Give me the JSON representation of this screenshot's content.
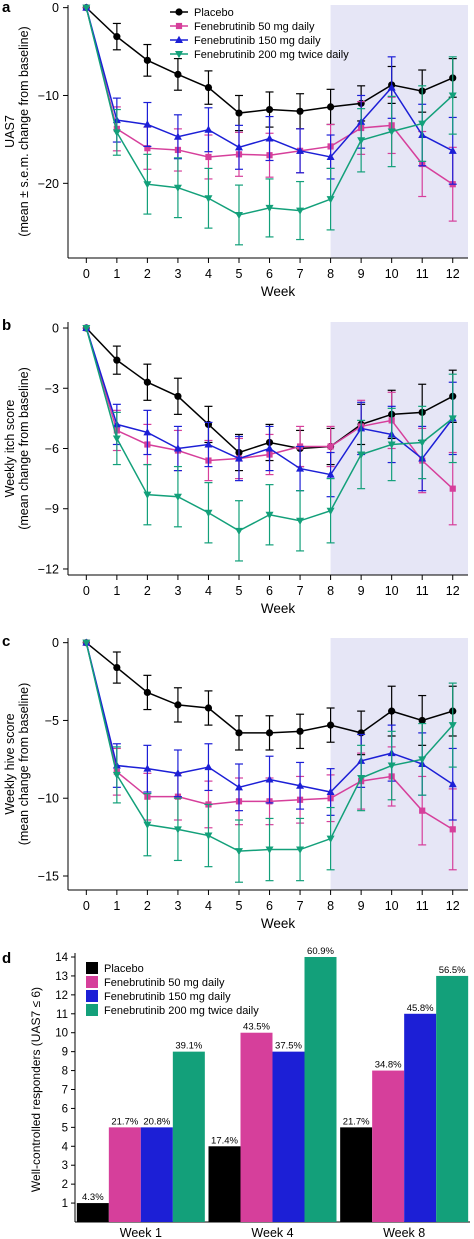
{
  "colors": {
    "placebo": "#000000",
    "fen50": "#d63f9b",
    "fen150": "#1c1fd6",
    "fen200": "#13a07a",
    "shade": "#e6e6f6"
  },
  "chart_data": [
    {
      "panel_label": "a",
      "type": "line",
      "title": "",
      "xlabel": "Week",
      "ylabel_lines": [
        "UAS7",
        "(mean ± s.e.m. change from baseline)"
      ],
      "x": [
        0,
        1,
        2,
        3,
        4,
        5,
        6,
        7,
        8,
        9,
        10,
        11,
        12
      ],
      "xlim": [
        -0.6,
        12.5
      ],
      "ylim": [
        -28.5,
        0.3
      ],
      "yticks": [
        0,
        -10,
        -20
      ],
      "ytick_labels": [
        "0",
        "−10",
        "−20"
      ],
      "shaded_from_week": 8,
      "legend_position": "top",
      "series": [
        {
          "name": "Placebo",
          "key": "placebo",
          "marker": "circle",
          "values": [
            0,
            -3.3,
            -6.0,
            -7.6,
            -9.1,
            -12.0,
            -11.6,
            -11.8,
            -11.3,
            -10.9,
            -8.8,
            -9.5,
            -8.0
          ],
          "errors": [
            0,
            1.5,
            1.8,
            1.8,
            1.9,
            2.0,
            2.0,
            2.0,
            2.0,
            2.0,
            2.1,
            2.4,
            2.2
          ]
        },
        {
          "name": "Fenebrutinib 50 mg daily",
          "key": "fen50",
          "marker": "square",
          "values": [
            0,
            -13.8,
            -16.0,
            -16.2,
            -17.0,
            -16.7,
            -16.8,
            -16.3,
            -15.8,
            -13.7,
            -13.4,
            -17.8,
            -20.1
          ],
          "errors": [
            0,
            2.5,
            2.4,
            2.4,
            2.5,
            2.5,
            2.5,
            2.5,
            2.5,
            3.0,
            3.2,
            3.7,
            4.2
          ]
        },
        {
          "name": "Fenebrutinib 150 mg daily",
          "key": "fen150",
          "marker": "triangle-up",
          "values": [
            0,
            -12.8,
            -13.3,
            -14.7,
            -13.9,
            -15.9,
            -14.9,
            -16.3,
            -17.0,
            -13.0,
            -9.1,
            -14.5,
            -16.3
          ],
          "errors": [
            0,
            2.5,
            2.5,
            2.5,
            2.5,
            2.5,
            2.5,
            2.5,
            2.5,
            3.0,
            3.5,
            3.5,
            3.8
          ]
        },
        {
          "name": "Fenebrutinib 200 mg twice daily",
          "key": "fen200",
          "marker": "triangle-down",
          "values": [
            0,
            -14.2,
            -20.1,
            -20.5,
            -21.7,
            -23.6,
            -22.8,
            -23.1,
            -21.8,
            -15.1,
            -14.1,
            -13.2,
            -10.0
          ],
          "errors": [
            0,
            2.6,
            3.4,
            3.4,
            3.4,
            3.4,
            3.3,
            3.3,
            3.5,
            3.6,
            4.0,
            4.3,
            4.4
          ]
        }
      ]
    },
    {
      "panel_label": "b",
      "type": "line",
      "title": "",
      "xlabel": "Week",
      "ylabel_lines": [
        "Weekly itch score",
        "(mean change from baseline)"
      ],
      "x": [
        0,
        1,
        2,
        3,
        4,
        5,
        6,
        7,
        8,
        9,
        10,
        11,
        12
      ],
      "xlim": [
        -0.6,
        12.5
      ],
      "ylim": [
        -12.3,
        0.3
      ],
      "yticks": [
        0,
        -3,
        -6,
        -9,
        -12
      ],
      "ytick_labels": [
        "0",
        "−3",
        "−6",
        "−9",
        "−12"
      ],
      "shaded_from_week": 8,
      "series": [
        {
          "name": "Placebo",
          "key": "placebo",
          "marker": "circle",
          "values": [
            0,
            -1.6,
            -2.7,
            -3.4,
            -4.8,
            -6.2,
            -5.7,
            -6.0,
            -5.9,
            -4.8,
            -4.3,
            -4.2,
            -3.4
          ],
          "errors": [
            0,
            0.7,
            0.9,
            0.9,
            0.9,
            0.9,
            0.9,
            0.9,
            0.9,
            1.0,
            1.2,
            1.4,
            1.3
          ]
        },
        {
          "name": "Fenebrutinib 50 mg daily",
          "key": "fen50",
          "marker": "square",
          "values": [
            0,
            -5.1,
            -5.8,
            -6.1,
            -6.6,
            -6.5,
            -6.3,
            -5.9,
            -5.9,
            -4.9,
            -4.6,
            -6.6,
            -8.0
          ],
          "errors": [
            0,
            1.0,
            1.0,
            1.0,
            1.0,
            1.0,
            1.0,
            1.0,
            1.0,
            1.3,
            1.4,
            1.6,
            1.8
          ]
        },
        {
          "name": "Fenebrutinib 150 mg daily",
          "key": "fen150",
          "marker": "triangle-up",
          "values": [
            0,
            -4.8,
            -5.2,
            -6.0,
            -5.8,
            -6.5,
            -6.0,
            -7.0,
            -7.3,
            -5.0,
            -5.3,
            -6.5,
            -4.5
          ],
          "errors": [
            0,
            1.0,
            1.1,
            1.1,
            1.1,
            1.1,
            1.1,
            1.1,
            1.1,
            1.3,
            1.4,
            1.6,
            1.8
          ]
        },
        {
          "name": "Fenebrutinib 200 mg twice daily",
          "key": "fen200",
          "marker": "triangle-down",
          "values": [
            0,
            -5.5,
            -8.3,
            -8.4,
            -9.2,
            -10.1,
            -9.3,
            -9.6,
            -9.1,
            -6.3,
            -5.8,
            -5.7,
            -4.5
          ],
          "errors": [
            0,
            1.3,
            1.5,
            1.5,
            1.5,
            1.5,
            1.5,
            1.5,
            1.6,
            1.7,
            1.8,
            1.8,
            2.2
          ]
        }
      ]
    },
    {
      "panel_label": "c",
      "type": "line",
      "title": "",
      "xlabel": "Week",
      "ylabel_lines": [
        "Weekly hive score",
        "(mean change from baseline)"
      ],
      "x": [
        0,
        1,
        2,
        3,
        4,
        5,
        6,
        7,
        8,
        9,
        10,
        11,
        12
      ],
      "xlim": [
        -0.6,
        12.5
      ],
      "ylim": [
        -15.9,
        0.3
      ],
      "yticks": [
        0,
        -5,
        -10,
        -15
      ],
      "ytick_labels": [
        "0",
        "−5",
        "−10",
        "−15"
      ],
      "shaded_from_week": 8,
      "series": [
        {
          "name": "Placebo",
          "key": "placebo",
          "marker": "circle",
          "values": [
            0,
            -1.6,
            -3.2,
            -4.0,
            -4.2,
            -5.8,
            -5.8,
            -5.7,
            -5.3,
            -5.8,
            -4.4,
            -5.0,
            -4.4
          ],
          "errors": [
            0,
            1.0,
            1.1,
            1.1,
            1.1,
            1.1,
            1.1,
            1.1,
            1.1,
            1.4,
            1.6,
            1.6,
            1.6
          ]
        },
        {
          "name": "Fenebrutinib 50 mg daily",
          "key": "fen50",
          "marker": "square",
          "values": [
            0,
            -8.3,
            -9.9,
            -9.9,
            -10.4,
            -10.2,
            -10.2,
            -10.1,
            -10.0,
            -8.9,
            -8.6,
            -10.8,
            -12.0
          ],
          "errors": [
            0,
            1.5,
            1.5,
            1.5,
            1.5,
            1.5,
            1.5,
            1.5,
            1.5,
            1.8,
            1.9,
            2.2,
            2.6
          ]
        },
        {
          "name": "Fenebrutinib 150 mg daily",
          "key": "fen150",
          "marker": "triangle-up",
          "values": [
            0,
            -7.9,
            -8.1,
            -8.4,
            -8.0,
            -9.3,
            -8.8,
            -9.2,
            -9.6,
            -7.6,
            -7.1,
            -7.8,
            -9.1
          ],
          "errors": [
            0,
            1.4,
            1.5,
            1.5,
            1.5,
            1.5,
            1.5,
            1.5,
            1.5,
            1.7,
            1.8,
            2.0,
            2.3
          ]
        },
        {
          "name": "Fenebrutinib 200 mg twice daily",
          "key": "fen200",
          "marker": "triangle-down",
          "values": [
            0,
            -8.5,
            -11.7,
            -12.0,
            -12.4,
            -13.4,
            -13.3,
            -13.3,
            -12.6,
            -8.7,
            -7.9,
            -7.5,
            -5.3
          ],
          "errors": [
            0,
            1.8,
            2.0,
            2.0,
            2.0,
            2.0,
            2.0,
            2.0,
            2.0,
            2.1,
            2.2,
            2.3,
            2.7
          ]
        }
      ]
    },
    {
      "panel_label": "d",
      "type": "bar",
      "title": "",
      "xlabel": "",
      "ylabel": "Well-controlled responders (UAS7 ≤ 6)",
      "ylim": [
        0,
        14
      ],
      "yticks": [
        1,
        2,
        3,
        4,
        5,
        6,
        7,
        8,
        9,
        10,
        11,
        12,
        13,
        14
      ],
      "categories": [
        "Week 1",
        "Week 4",
        "Week 8"
      ],
      "legend_position": "top-left",
      "series": [
        {
          "name": "Placebo",
          "key": "placebo",
          "values": [
            1,
            4,
            5
          ],
          "labels": [
            "4.3%",
            "17.4%",
            "21.7%"
          ]
        },
        {
          "name": "Fenebrutinib 50 mg daily",
          "key": "fen50",
          "values": [
            5,
            10,
            8
          ],
          "labels": [
            "21.7%",
            "43.5%",
            "34.8%"
          ]
        },
        {
          "name": "Fenebrutinib 150 mg daily",
          "key": "fen150",
          "values": [
            5,
            9,
            11
          ],
          "labels": [
            "20.8%",
            "37.5%",
            "45.8%"
          ]
        },
        {
          "name": "Fenebrutinib 200 mg twice daily",
          "key": "fen200",
          "values": [
            9,
            14,
            13
          ],
          "labels": [
            "39.1%",
            "60.9%",
            "56.5%"
          ]
        }
      ]
    }
  ]
}
